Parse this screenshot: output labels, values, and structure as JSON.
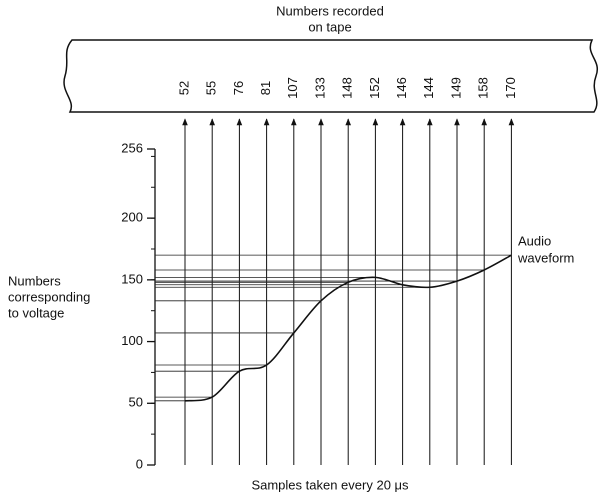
{
  "title": [
    "Numbers recorded",
    "on tape"
  ],
  "samples": [
    52,
    55,
    76,
    81,
    107,
    133,
    148,
    152,
    146,
    144,
    149,
    158,
    170
  ],
  "y_axis": {
    "label": [
      "Numbers",
      "corresponding",
      "to voltage"
    ],
    "ylim": [
      0,
      256
    ],
    "yticks": [
      0,
      50,
      100,
      150,
      200,
      256
    ]
  },
  "x_axis_label": "Samples taken every 20 μs",
  "annotation": [
    "Audio",
    "waveform"
  ]
}
